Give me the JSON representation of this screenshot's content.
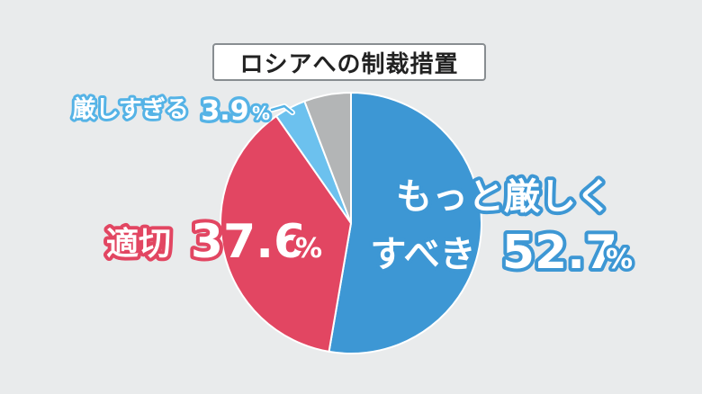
{
  "chart_data": {
    "type": "pie",
    "title": "ロシアへの制裁措置",
    "slices": [
      {
        "label": "もっと厳しくすべき",
        "label_lines": [
          "もっと厳しく",
          "すべき"
        ],
        "value": 52.7,
        "value_text": "52.7",
        "unit": "%",
        "color": "#3d97d4"
      },
      {
        "label": "適切",
        "value": 37.6,
        "value_text": "37.6",
        "unit": "%",
        "color": "#e24662"
      },
      {
        "label": "厳しすぎる",
        "value": 3.9,
        "value_text": "3.9",
        "unit": "%",
        "color": "#6cc1ee"
      },
      {
        "label": "",
        "value": 5.8,
        "color": "#b3b5b6"
      }
    ],
    "label_colors": {
      "slice0": "#3d97d4",
      "slice1": "#e24662",
      "slice2": "#55b3e6"
    }
  }
}
